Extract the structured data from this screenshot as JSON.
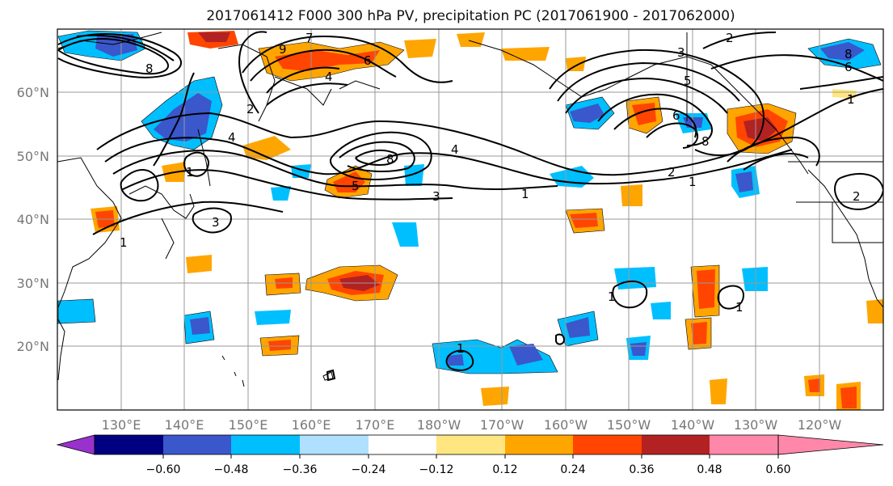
{
  "title": "2017061412 F000 300 hPa PV, precipitation PC (2017061900 - 2017062000)",
  "map": {
    "lon_range": [
      120,
      250
    ],
    "lat_range": [
      10,
      70
    ],
    "lat_ticks": [
      "20°N",
      "30°N",
      "40°N",
      "50°N",
      "60°N"
    ],
    "lon_ticks": [
      "130°E",
      "140°E",
      "150°E",
      "160°E",
      "170°E",
      "180°W",
      "170°W",
      "160°W",
      "150°W",
      "140°W",
      "130°W",
      "120°W"
    ],
    "grid": true,
    "coastlines": true
  },
  "colorbar": {
    "colors": [
      "#9932cc",
      "#000080",
      "#3a57cc",
      "#00bfff",
      "#b0e0ff",
      "#ffffff",
      "#ffe680",
      "#ffa500",
      "#ff4500",
      "#b22222",
      "#ff88aa"
    ],
    "tick_labels": [
      "−0.60",
      "−0.48",
      "−0.36",
      "−0.24",
      "−0.12",
      "0.12",
      "0.24",
      "0.36",
      "0.48",
      "0.60"
    ],
    "extend": "both"
  },
  "contour_labels": [
    "8",
    "7",
    "6",
    "5",
    "4",
    "3",
    "2",
    "1",
    "9"
  ]
}
